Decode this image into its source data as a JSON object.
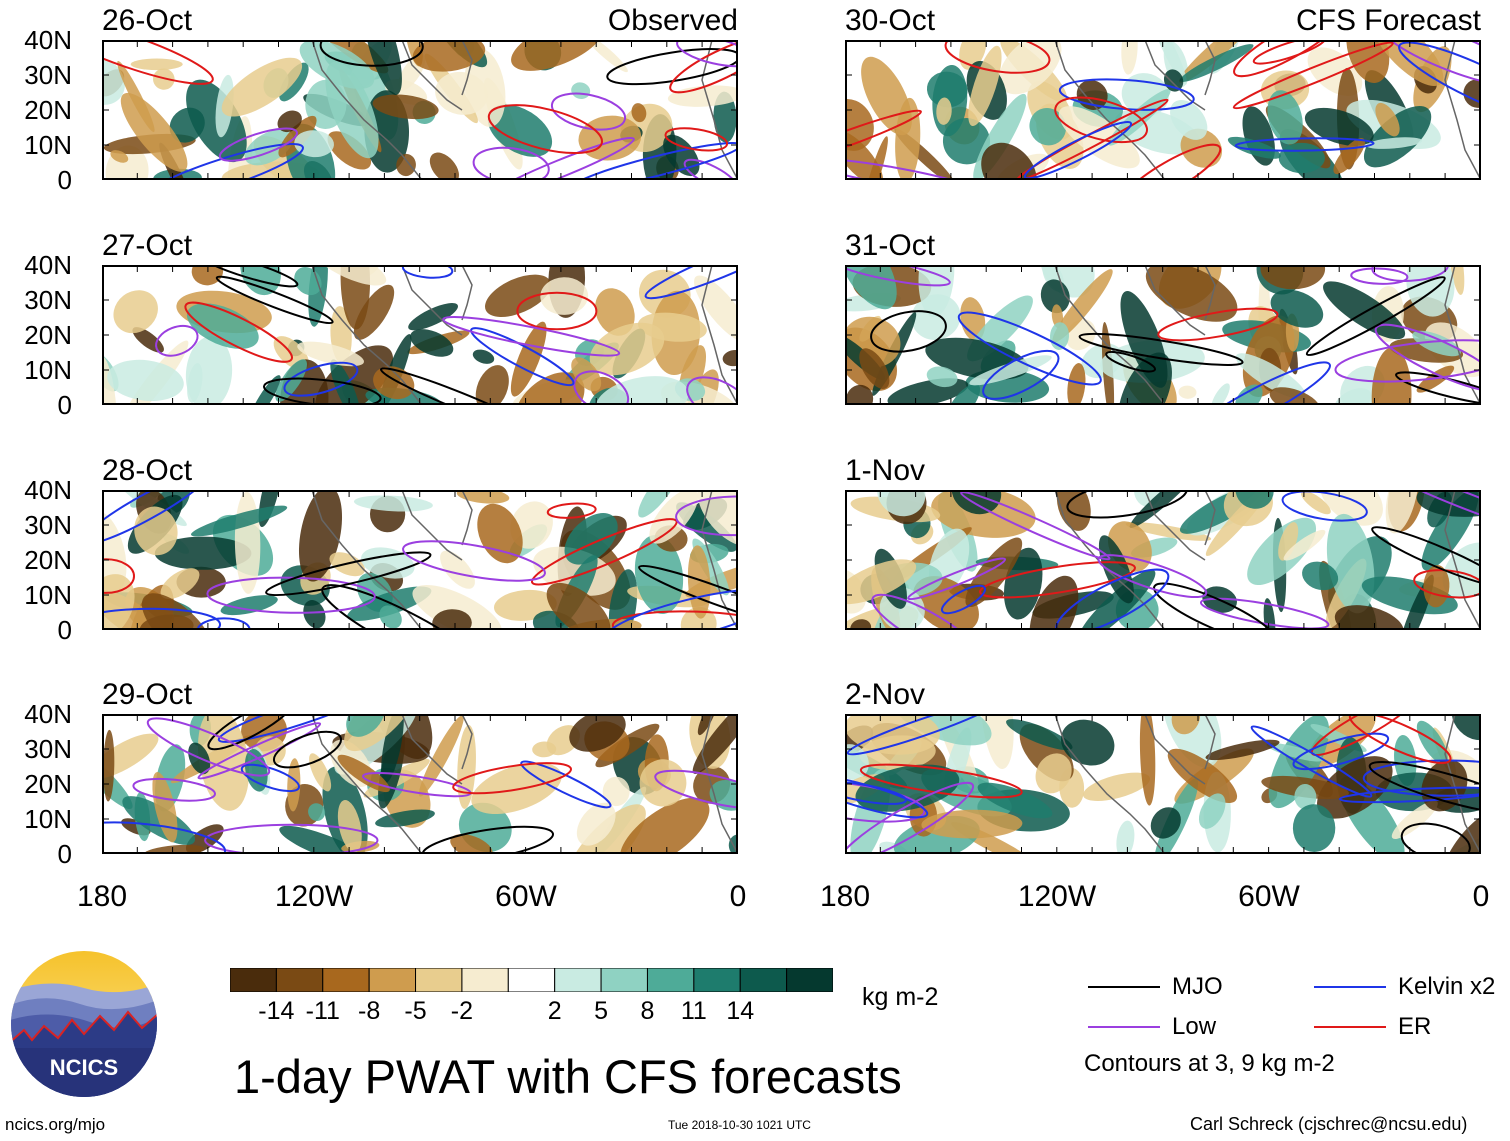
{
  "left_column": {
    "panels": [
      {
        "date": "26-Oct",
        "tag": "Observed"
      },
      {
        "date": "27-Oct",
        "tag": ""
      },
      {
        "date": "28-Oct",
        "tag": ""
      },
      {
        "date": "29-Oct",
        "tag": ""
      }
    ]
  },
  "right_column": {
    "panels": [
      {
        "date": "30-Oct",
        "tag": "CFS Forecast"
      },
      {
        "date": "31-Oct",
        "tag": ""
      },
      {
        "date": "1-Nov",
        "tag": ""
      },
      {
        "date": "2-Nov",
        "tag": ""
      }
    ]
  },
  "axes": {
    "lat_labels": [
      "40N",
      "30N",
      "20N",
      "10N",
      "0"
    ],
    "lon_labels": [
      "180",
      "120W",
      "60W",
      "0"
    ]
  },
  "colorbar": {
    "tick_labels": [
      "-14",
      "-11",
      "-8",
      "-5",
      "-2",
      "2",
      "5",
      "8",
      "11",
      "14"
    ],
    "units": "kg m-2",
    "colors": [
      "#4a2c0c",
      "#7a4a14",
      "#a8681e",
      "#cf9c4e",
      "#e8cd8e",
      "#f6ecd0",
      "#ffffff",
      "#c9ebe2",
      "#8fd2c2",
      "#4eab98",
      "#1e7c6d",
      "#0d5a4d",
      "#05392f"
    ]
  },
  "legend": {
    "items": [
      {
        "label": "MJO",
        "color": "#000000"
      },
      {
        "label": "Kelvin x2",
        "color": "#1f35e8"
      },
      {
        "label": "Low",
        "color": "#9b3fe0"
      },
      {
        "label": "ER",
        "color": "#e01919"
      }
    ],
    "note": "Contours at 3, 9 kg m-2"
  },
  "title": "1-day PWAT with CFS forecasts",
  "logo": {
    "text": "NCICS"
  },
  "footer": {
    "url": "ncics.org/mjo",
    "timestamp": "Tue 2018-10-30 1021 UTC",
    "credit": "Carl Schreck (cjschrec@ncsu.edu)"
  }
}
